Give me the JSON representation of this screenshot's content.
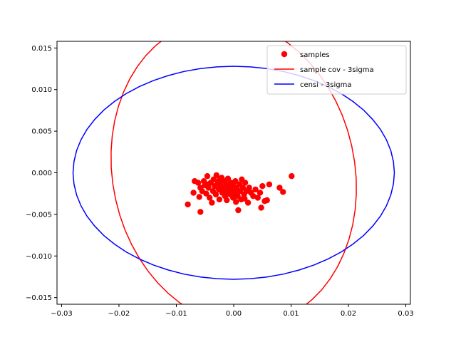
{
  "chart_data": {
    "type": "scatter",
    "title": "",
    "xlabel": "",
    "ylabel": "",
    "xlim": [
      -0.0308,
      0.0308
    ],
    "ylim": [
      -0.0158,
      0.0158
    ],
    "grid": false,
    "legend_placement": "top-right",
    "x_ticks": [
      -0.03,
      -0.02,
      -0.01,
      0.0,
      0.01,
      0.02,
      0.03
    ],
    "x_tick_labels": [
      "−0.03",
      "−0.02",
      "−0.01",
      "0.00",
      "0.01",
      "0.02",
      "0.03"
    ],
    "y_ticks": [
      -0.015,
      -0.01,
      -0.005,
      0.0,
      0.005,
      0.01,
      0.015
    ],
    "y_tick_labels": [
      "−0.015",
      "−0.010",
      "−0.005",
      "0.000",
      "0.005",
      "0.010",
      "0.015"
    ],
    "series": [
      {
        "name": "samples",
        "kind": "scatter",
        "color": "#ff0000",
        "points": [
          [
            -0.008,
            -0.0038
          ],
          [
            -0.0058,
            -0.0047
          ],
          [
            -0.007,
            -0.0024
          ],
          [
            -0.0068,
            -0.001
          ],
          [
            -0.0062,
            -0.0012
          ],
          [
            -0.0058,
            -0.0018
          ],
          [
            -0.0055,
            -0.0022
          ],
          [
            -0.0052,
            -0.001
          ],
          [
            -0.005,
            -0.0015
          ],
          [
            -0.0048,
            -0.0025
          ],
          [
            -0.0046,
            -0.0004
          ],
          [
            -0.0044,
            -0.0018
          ],
          [
            -0.0042,
            -0.003
          ],
          [
            -0.004,
            -0.0012
          ],
          [
            -0.0038,
            -0.0036
          ],
          [
            -0.0036,
            -0.0022
          ],
          [
            -0.0035,
            -0.0008
          ],
          [
            -0.0033,
            -0.0016
          ],
          [
            -0.0031,
            -0.0026
          ],
          [
            -0.003,
            -0.0003
          ],
          [
            -0.0028,
            -0.0012
          ],
          [
            -0.0026,
            -0.002
          ],
          [
            -0.0025,
            -0.0032
          ],
          [
            -0.0023,
            -0.0015
          ],
          [
            -0.0021,
            -0.0006
          ],
          [
            -0.002,
            -0.0024
          ],
          [
            -0.0018,
            -0.0018
          ],
          [
            -0.0016,
            -0.001
          ],
          [
            -0.0015,
            -0.0028
          ],
          [
            -0.0013,
            -0.0014
          ],
          [
            -0.0011,
            -0.0022
          ],
          [
            -0.001,
            -0.0007
          ],
          [
            -0.0008,
            -0.0017
          ],
          [
            -0.0006,
            -0.0026
          ],
          [
            -0.0005,
            -0.0012
          ],
          [
            -0.0003,
            -0.002
          ],
          [
            -0.0001,
            -0.003
          ],
          [
            0.0,
            -0.0016
          ],
          [
            0.0002,
            -0.0024
          ],
          [
            0.0003,
            -0.001
          ],
          [
            0.0005,
            -0.0018
          ],
          [
            0.0007,
            -0.0028
          ],
          [
            0.0008,
            -0.0045
          ],
          [
            0.001,
            -0.0014
          ],
          [
            0.0011,
            -0.0022
          ],
          [
            0.0013,
            -0.0032
          ],
          [
            0.0014,
            -0.0008
          ],
          [
            0.0016,
            -0.0018
          ],
          [
            0.0018,
            -0.0026
          ],
          [
            0.002,
            -0.0012
          ],
          [
            0.0022,
            -0.0022
          ],
          [
            0.0025,
            -0.0036
          ],
          [
            0.0027,
            -0.0018
          ],
          [
            0.003,
            -0.0024
          ],
          [
            0.0034,
            -0.0028
          ],
          [
            0.0038,
            -0.002
          ],
          [
            0.0042,
            -0.003
          ],
          [
            0.0046,
            -0.0024
          ],
          [
            0.0048,
            -0.0042
          ],
          [
            0.005,
            -0.0016
          ],
          [
            0.0054,
            -0.0034
          ],
          [
            0.0058,
            -0.0033
          ],
          [
            0.0062,
            -0.0014
          ],
          [
            0.008,
            -0.0018
          ],
          [
            0.0086,
            -0.0023
          ],
          [
            0.0101,
            -0.0004
          ],
          [
            -0.006,
            -0.0029
          ],
          [
            -0.0045,
            -0.0014
          ],
          [
            -0.0025,
            -0.0009
          ],
          [
            -0.0012,
            -0.0033
          ],
          [
            0.0004,
            -0.0035
          ],
          [
            0.0019,
            -0.0031
          ]
        ]
      },
      {
        "name": "sample cov - 3sigma",
        "kind": "ellipse",
        "color": "#ff0000",
        "center": [
          0.0,
          0.0
        ],
        "radius_x": 0.0181,
        "radius_y": 0.0145,
        "tilt_x": 0.0114,
        "tilt_y": -0.0113
      },
      {
        "name": "censi - 3sigma",
        "kind": "ellipse",
        "color": "#0000ff",
        "center": [
          0.0,
          0.0
        ],
        "radius_x": 0.028,
        "radius_y": 0.0128,
        "tilt_x": 0.0,
        "tilt_y": 0.0
      }
    ]
  }
}
